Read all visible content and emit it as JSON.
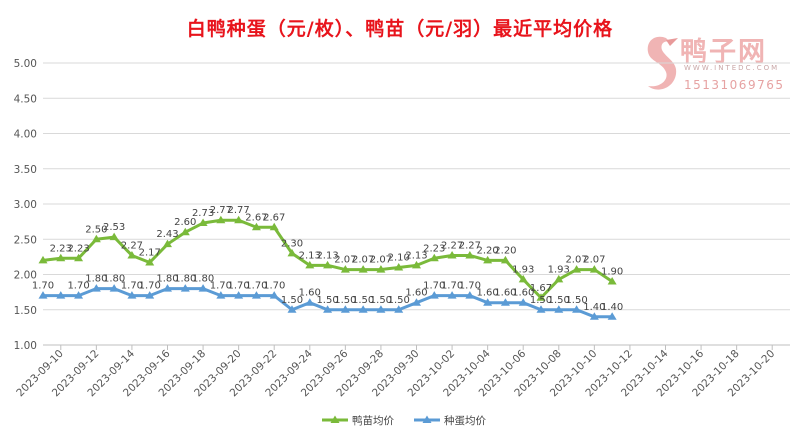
{
  "colors": {
    "title": "#e8141c",
    "duckling": "#7aba3a",
    "egg": "#5b9bd5",
    "grid": "#d9d9d9",
    "watermark": "#f0b4b4"
  },
  "watermark": {
    "brand": "鸭子网",
    "site": "WWW.INTEDC.COM",
    "phone": "15131069765",
    "icon": "duck-logo-icon"
  },
  "chart_data": {
    "type": "line",
    "title": "白鸭种蛋（元/枚）、鸭苗（元/羽）最近平均价格",
    "ylim": [
      1.0,
      5.0
    ],
    "yticks": [
      "1.00",
      "1.50",
      "2.00",
      "2.50",
      "3.00",
      "3.50",
      "4.00",
      "4.50",
      "5.00"
    ],
    "xlim": [
      "2023-09-09",
      "2023-10-21"
    ],
    "xticks": [
      "2023-09-10",
      "2023-09-12",
      "2023-09-14",
      "2023-09-16",
      "2023-09-18",
      "2023-09-20",
      "2023-09-22",
      "2023-09-24",
      "2023-09-26",
      "2023-09-28",
      "2023-09-30",
      "2023-10-02",
      "2023-10-04",
      "2023-10-06",
      "2023-10-08",
      "2023-10-10",
      "2023-10-12",
      "2023-10-14",
      "2023-10-16",
      "2023-10-18",
      "2023-10-20"
    ],
    "grid": "horizontal",
    "legend_position": "bottom",
    "x": [
      "2023-09-09",
      "2023-09-10",
      "2023-09-11",
      "2023-09-12",
      "2023-09-13",
      "2023-09-14",
      "2023-09-15",
      "2023-09-16",
      "2023-09-17",
      "2023-09-18",
      "2023-09-19",
      "2023-09-20",
      "2023-09-21",
      "2023-09-22",
      "2023-09-23",
      "2023-09-24",
      "2023-09-25",
      "2023-09-26",
      "2023-09-27",
      "2023-09-28",
      "2023-09-29",
      "2023-09-30",
      "2023-10-01",
      "2023-10-02",
      "2023-10-03",
      "2023-10-04",
      "2023-10-05",
      "2023-10-06",
      "2023-10-07",
      "2023-10-08",
      "2023-10-09",
      "2023-10-10",
      "2023-10-11"
    ],
    "series": [
      {
        "name": "鸭苗均价",
        "color": "#7aba3a",
        "values": [
          2.2,
          2.23,
          2.23,
          2.5,
          2.53,
          2.27,
          2.17,
          2.43,
          2.6,
          2.73,
          2.77,
          2.77,
          2.67,
          2.67,
          2.3,
          2.13,
          2.13,
          2.07,
          2.07,
          2.07,
          2.1,
          2.13,
          2.23,
          2.27,
          2.27,
          2.2,
          2.2,
          1.93,
          1.67,
          1.93,
          2.07,
          2.07,
          1.9
        ],
        "labels": [
          "",
          "2.23",
          "2.23",
          "2.50",
          "2.53",
          "2.27",
          "2.17",
          "2.43",
          "2.60",
          "2.73",
          "2.77",
          "2.77",
          "2.67",
          "2.67",
          "2.30",
          "2.13",
          "2.13",
          "2.07",
          "2.07",
          "2.07",
          "2.10",
          "2.13",
          "2.23",
          "2.27",
          "2.27",
          "2.20",
          "2.20",
          "1.93",
          "1.67",
          "1.93",
          "2.07",
          "2.07",
          "1.90"
        ]
      },
      {
        "name": "种蛋均价",
        "color": "#5b9bd5",
        "values": [
          1.7,
          1.7,
          1.7,
          1.8,
          1.8,
          1.7,
          1.7,
          1.8,
          1.8,
          1.8,
          1.7,
          1.7,
          1.7,
          1.7,
          1.5,
          1.6,
          1.5,
          1.5,
          1.5,
          1.5,
          1.5,
          1.6,
          1.7,
          1.7,
          1.7,
          1.6,
          1.6,
          1.6,
          1.5,
          1.5,
          1.5,
          1.4,
          1.4
        ],
        "labels": [
          "1.70",
          "",
          "1.70",
          "1.80",
          "1.80",
          "1.70",
          "1.70",
          "1.80",
          "1.80",
          "1.80",
          "1.70",
          "1.70",
          "1.70",
          "1.70",
          "1.50",
          "1.60",
          "1.50",
          "1.50",
          "1.50",
          "1.50",
          "1.50",
          "1.60",
          "1.70",
          "1.70",
          "1.70",
          "1.60",
          "1.60",
          "1.60",
          "1.50",
          "1.50",
          "1.50",
          "1.40",
          "1.40"
        ]
      }
    ]
  }
}
